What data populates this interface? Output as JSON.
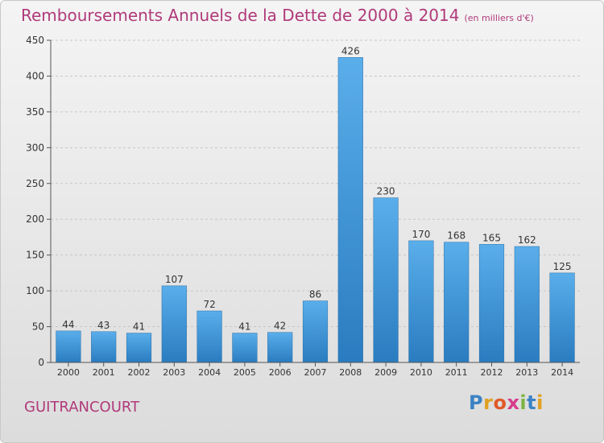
{
  "title": "Remboursements Annuels de la Dette de 2000 à 2014",
  "subtitle": "(en milliers d'€)",
  "place": "GUITRANCOURT",
  "logo": {
    "letters": [
      "P",
      "r",
      "o",
      "x",
      "i",
      "t",
      "i"
    ],
    "colors": [
      "#3b82c4",
      "#e0a020",
      "#e05a2a",
      "#d63c8c",
      "#7cb342",
      "#3b82c4",
      "#e0a020"
    ]
  },
  "colors": {
    "bar_top": "#5aaeea",
    "bar_bottom": "#2a7cc0",
    "title": "#b03a7a"
  },
  "chart_data": {
    "type": "bar",
    "title": "Remboursements Annuels de la Dette de 2000 à 2014",
    "subtitle": "(en milliers d'€)",
    "categories": [
      "2000",
      "2001",
      "2002",
      "2003",
      "2004",
      "2005",
      "2006",
      "2007",
      "2008",
      "2009",
      "2010",
      "2011",
      "2012",
      "2013",
      "2014"
    ],
    "values": [
      44,
      43,
      41,
      107,
      72,
      41,
      42,
      86,
      426,
      230,
      170,
      168,
      165,
      162,
      125
    ],
    "ylim": [
      0,
      450
    ],
    "yticks": [
      0,
      50,
      100,
      150,
      200,
      250,
      300,
      350,
      400,
      450
    ],
    "grid": true,
    "xlabel": "",
    "ylabel": ""
  }
}
